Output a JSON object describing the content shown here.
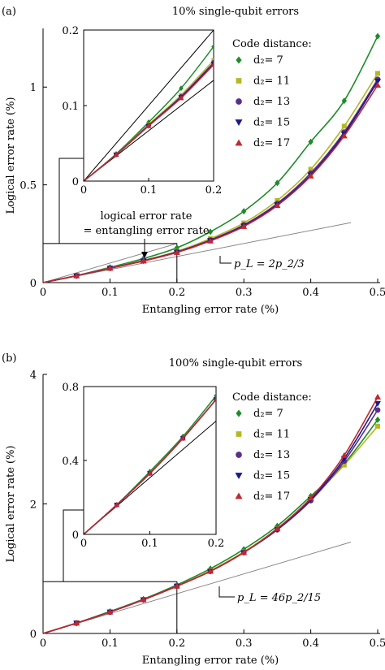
{
  "chart_data": [
    {
      "panel_label": "(a)",
      "type": "line",
      "title": "10% single-qubit errors",
      "xlabel": "Entangling error rate (%)",
      "ylabel": "Logical error rate (%)",
      "xlim": [
        0,
        0.5
      ],
      "ylim": [
        0,
        1.3
      ],
      "xticks": [
        "0",
        "0.1",
        "0.2",
        "0.3",
        "0.4",
        "0.5"
      ],
      "yticks": [
        "0",
        "0.5",
        "1"
      ],
      "legend_title": "Code distance:",
      "legend_position": "top-right",
      "series": [
        {
          "name": "d₂= 7",
          "color": "#1e8c2a",
          "marker": "diamond",
          "x": [
            0.05,
            0.1,
            0.15,
            0.2,
            0.25,
            0.3,
            0.35,
            0.4,
            0.45,
            0.5
          ],
          "y": [
            0.036,
            0.078,
            0.123,
            0.178,
            0.26,
            0.365,
            0.51,
            0.72,
            0.93,
            1.26
          ]
        },
        {
          "name": "d₂= 11",
          "color": "#b5b820",
          "marker": "square",
          "x": [
            0.05,
            0.1,
            0.15,
            0.2,
            0.25,
            0.3,
            0.35,
            0.4,
            0.45,
            0.5
          ],
          "y": [
            0.035,
            0.075,
            0.114,
            0.16,
            0.225,
            0.305,
            0.42,
            0.58,
            0.8,
            1.07
          ]
        },
        {
          "name": "d₂= 13",
          "color": "#5b2d8e",
          "marker": "circle",
          "x": [
            0.05,
            0.1,
            0.15,
            0.2,
            0.25,
            0.3,
            0.35,
            0.4,
            0.45,
            0.5
          ],
          "y": [
            0.035,
            0.074,
            0.112,
            0.157,
            0.218,
            0.295,
            0.405,
            0.56,
            0.77,
            1.04
          ]
        },
        {
          "name": "d₂= 15",
          "color": "#1a1a8c",
          "marker": "triangle-down",
          "x": [
            0.05,
            0.1,
            0.15,
            0.2,
            0.25,
            0.3,
            0.35,
            0.4,
            0.45,
            0.5
          ],
          "y": [
            0.035,
            0.073,
            0.111,
            0.155,
            0.215,
            0.29,
            0.398,
            0.55,
            0.76,
            1.03
          ]
        },
        {
          "name": "d₂= 17",
          "color": "#c0282d",
          "marker": "triangle-up",
          "x": [
            0.05,
            0.1,
            0.15,
            0.2,
            0.25,
            0.3,
            0.35,
            0.4,
            0.45,
            0.5
          ],
          "y": [
            0.035,
            0.073,
            0.11,
            0.154,
            0.213,
            0.287,
            0.394,
            0.545,
            0.75,
            1.01
          ]
        }
      ],
      "reference_line": {
        "label": "p_L = 2p_2/3",
        "slope": 0.667
      },
      "annotation": {
        "line1": "logical error rate",
        "line2": "= entangling error rate"
      },
      "inset": {
        "xlim": [
          0,
          0.2
        ],
        "ylim": [
          0,
          0.2
        ],
        "xticks": [
          "0",
          "0.1",
          "0.2"
        ],
        "yticks": [
          "0",
          "0.1",
          "0.2"
        ]
      }
    },
    {
      "panel_label": "(b)",
      "type": "line",
      "title": "100% single-qubit errors",
      "xlabel": "Entangling error rate (%)",
      "ylabel": "Logical error rate (%)",
      "xlim": [
        0,
        0.5
      ],
      "ylim": [
        0,
        4
      ],
      "xticks": [
        "0",
        "0.1",
        "0.2",
        "0.3",
        "0.4",
        "0.5"
      ],
      "yticks": [
        "0",
        "2",
        "4"
      ],
      "legend_title": "Code distance:",
      "legend_position": "top-right",
      "series": [
        {
          "name": "d₂= 7",
          "color": "#1e8c2a",
          "marker": "diamond",
          "x": [
            0.05,
            0.1,
            0.15,
            0.2,
            0.25,
            0.3,
            0.35,
            0.4,
            0.45,
            0.5
          ],
          "y": [
            0.16,
            0.34,
            0.53,
            0.75,
            1.0,
            1.3,
            1.66,
            2.12,
            2.62,
            3.3
          ]
        },
        {
          "name": "d₂= 11",
          "color": "#b5b820",
          "marker": "square",
          "x": [
            0.05,
            0.1,
            0.15,
            0.2,
            0.25,
            0.3,
            0.35,
            0.4,
            0.45,
            0.5
          ],
          "y": [
            0.16,
            0.33,
            0.52,
            0.73,
            0.97,
            1.26,
            1.62,
            2.08,
            2.6,
            3.2
          ]
        },
        {
          "name": "d₂= 13",
          "color": "#5b2d8e",
          "marker": "circle",
          "x": [
            0.05,
            0.1,
            0.15,
            0.2,
            0.25,
            0.3,
            0.35,
            0.4,
            0.45,
            0.5
          ],
          "y": [
            0.16,
            0.33,
            0.52,
            0.73,
            0.96,
            1.25,
            1.6,
            2.05,
            2.66,
            3.45
          ]
        },
        {
          "name": "d₂= 15",
          "color": "#1a1a8c",
          "marker": "triangle-down",
          "x": [
            0.05,
            0.1,
            0.15,
            0.2,
            0.25,
            0.3,
            0.35,
            0.4,
            0.45,
            0.5
          ],
          "y": [
            0.16,
            0.33,
            0.52,
            0.73,
            0.96,
            1.25,
            1.61,
            2.07,
            2.7,
            3.55
          ]
        },
        {
          "name": "d₂= 17",
          "color": "#c0282d",
          "marker": "triangle-up",
          "x": [
            0.05,
            0.1,
            0.15,
            0.2,
            0.25,
            0.3,
            0.35,
            0.4,
            0.45,
            0.5
          ],
          "y": [
            0.16,
            0.33,
            0.52,
            0.73,
            0.96,
            1.25,
            1.62,
            2.09,
            2.75,
            3.65
          ]
        }
      ],
      "reference_line": {
        "label": "p_L = 46p_2/15",
        "slope": 3.067
      },
      "inset": {
        "xlim": [
          0,
          0.2
        ],
        "ylim": [
          0,
          0.8
        ],
        "xticks": [
          "0",
          "0.1",
          "0.2"
        ],
        "yticks": [
          "0",
          "0.4",
          "0.8"
        ]
      }
    }
  ]
}
